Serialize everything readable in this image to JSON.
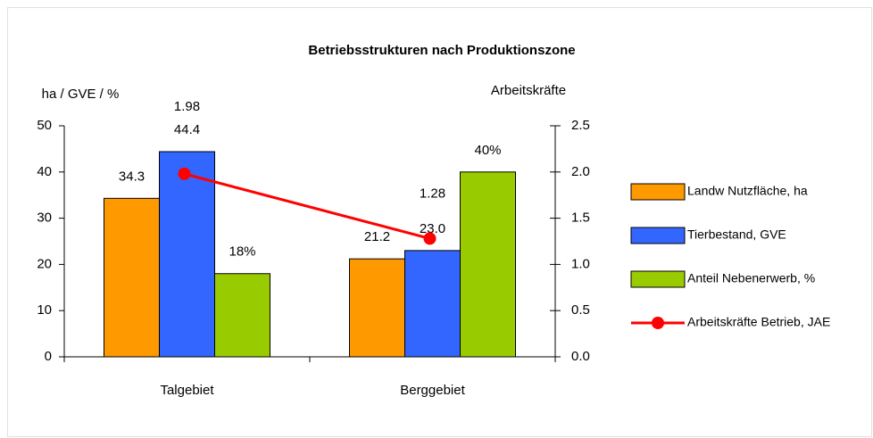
{
  "chart_data": {
    "type": "bar",
    "title": "Betriebsstrukturen nach Produktionszone",
    "y_label": "ha / GVE / %",
    "y2_label": "Arbeitskräfte",
    "categories": [
      "Talgebiet",
      "Berggebiet"
    ],
    "series": [
      {
        "name": "Landw Nutzfläche, ha",
        "color": "#ff9900",
        "values": [
          34.3,
          21.2
        ]
      },
      {
        "name": "Tierbestand, GVE",
        "color": "#3366ff",
        "values": [
          44.4,
          23.0
        ],
        "value_labels": [
          "44.4",
          "23.0"
        ]
      },
      {
        "name": "Anteil Nebenerwerb, %",
        "color": "#99cc00",
        "values": [
          18,
          40
        ],
        "value_labels": [
          "18%",
          "40%"
        ]
      },
      {
        "name": "Arbeitskräfte Betrieb, JAE",
        "color": "#ff0000",
        "type": "line",
        "axis": "y2",
        "values": [
          1.98,
          1.28
        ]
      }
    ],
    "ylim": [
      0,
      50
    ],
    "yticks": [
      0,
      10,
      20,
      30,
      40,
      50
    ],
    "y2lim": [
      0,
      2.5
    ],
    "y2ticks": [
      {
        "value": 0,
        "label": "0.0"
      },
      0.5,
      {
        "value": 1,
        "label": "1.0"
      },
      1.5,
      {
        "value": 2,
        "label": "2.0"
      },
      2.5
    ],
    "legend": "right"
  }
}
